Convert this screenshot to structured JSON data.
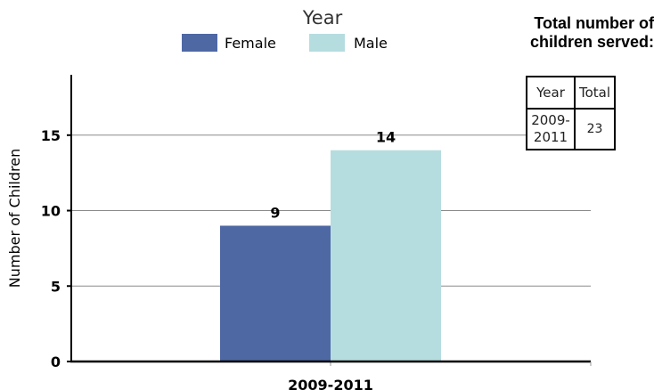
{
  "summary": {
    "title_line1": "Total number of",
    "title_line2": "children served:",
    "headers": [
      "Year",
      "Total"
    ],
    "rows": [
      {
        "year": "2009-2011",
        "year_line1": "2009-",
        "year_line2": "2011",
        "total": "23"
      }
    ]
  },
  "chart_data": {
    "type": "bar",
    "title": "Year",
    "xlabel": "",
    "ylabel": "Number of Children",
    "categories": [
      "2009-2011"
    ],
    "series": [
      {
        "name": "Female",
        "values": [
          9
        ],
        "color": "#4e68a4"
      },
      {
        "name": "Male",
        "values": [
          14
        ],
        "color": "#b5dde0"
      }
    ],
    "ylim": [
      0,
      19
    ],
    "yticks": [
      0,
      5,
      10,
      15
    ],
    "grid": true,
    "legend": "top",
    "data_labels": true
  }
}
